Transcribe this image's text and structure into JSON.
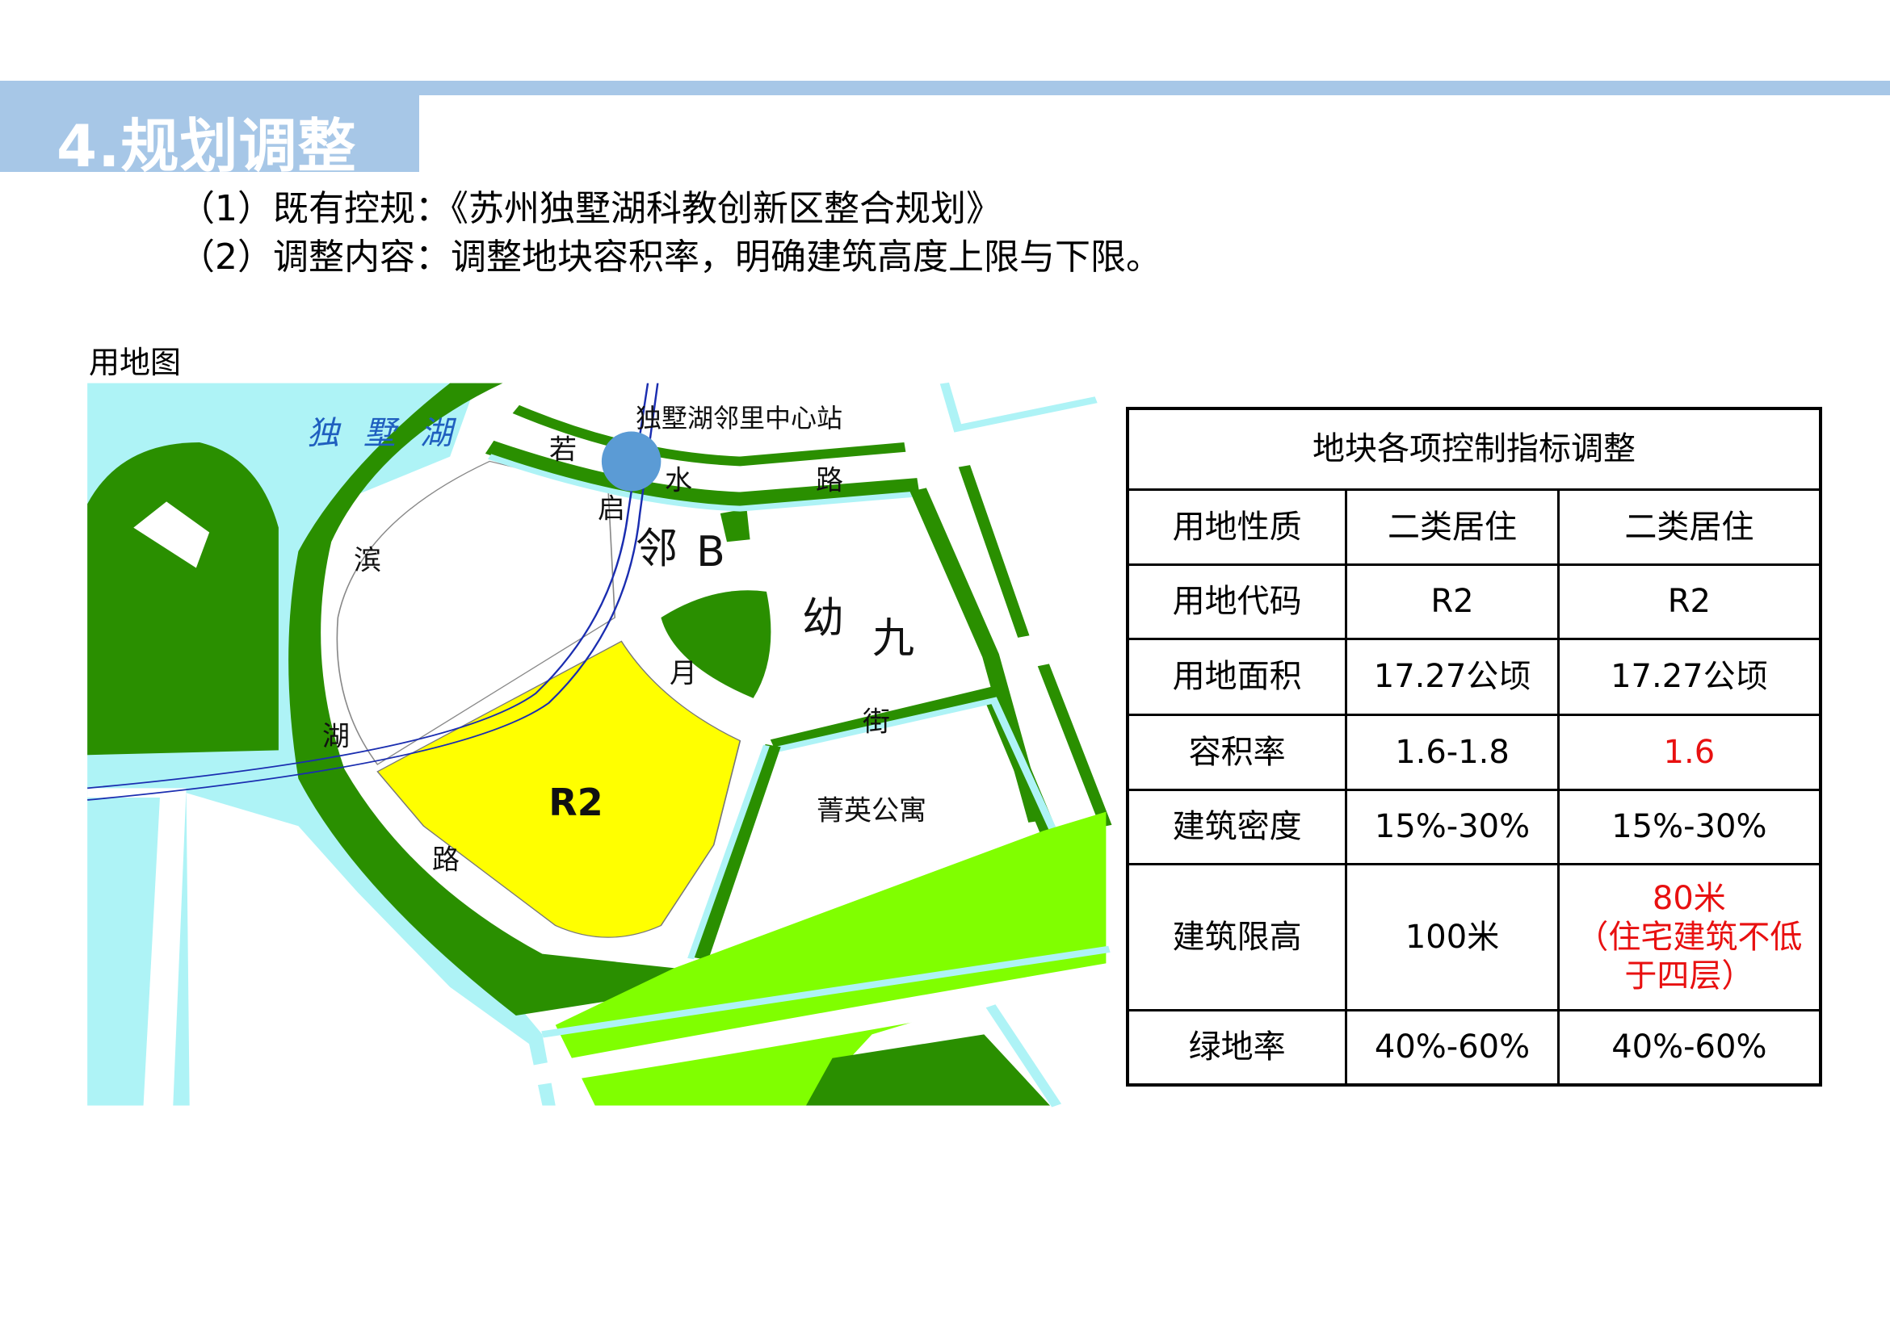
{
  "header": {
    "title": "4.规划调整"
  },
  "intro": {
    "line1": "（1）既有控规：《苏州独墅湖科教创新区整合规划》",
    "line2": "（2）调整内容：调整地块容积率，明确建筑高度上限与下限。"
  },
  "map": {
    "caption": "用地图",
    "lake_name": "独墅湖",
    "station": "独墅湖邻里中心站",
    "labels": {
      "ruo": "若",
      "shui": "水",
      "lu1": "路",
      "qi": "启",
      "lin": "邻",
      "b": "B",
      "you": "幼",
      "jiu": "九",
      "bin": "滨",
      "yue": "月",
      "jie": "街",
      "hu": "湖",
      "r2": "R2",
      "jingying": "菁英公寓",
      "lu2": "路"
    },
    "colors": {
      "water": "#aef3f6",
      "green": "#2a8f00",
      "light_green": "#80ff00",
      "residential": "#ffff00",
      "station": "#5b9bd5",
      "rail": "#1a2db0"
    }
  },
  "table": {
    "title": "地块各项控制指标调整",
    "rows": [
      {
        "label": "用地性质",
        "before": "二类居住",
        "after": "二类居住"
      },
      {
        "label": "用地代码",
        "before": "R2",
        "after": "R2"
      },
      {
        "label": "用地面积",
        "before": "17.27公顷",
        "after": "17.27公顷"
      },
      {
        "label": "容积率",
        "before": "1.6-1.8",
        "after": "1.6",
        "after_highlight": true
      },
      {
        "label": "建筑密度",
        "before": "15%-30%",
        "after": "15%-30%"
      },
      {
        "label": "建筑限高",
        "before": "100米",
        "after": "80米",
        "after_note": "（住宅建筑不低于四层）",
        "after_highlight": true
      },
      {
        "label": "绿地率",
        "before": "40%-60%",
        "after": "40%-60%"
      }
    ]
  }
}
